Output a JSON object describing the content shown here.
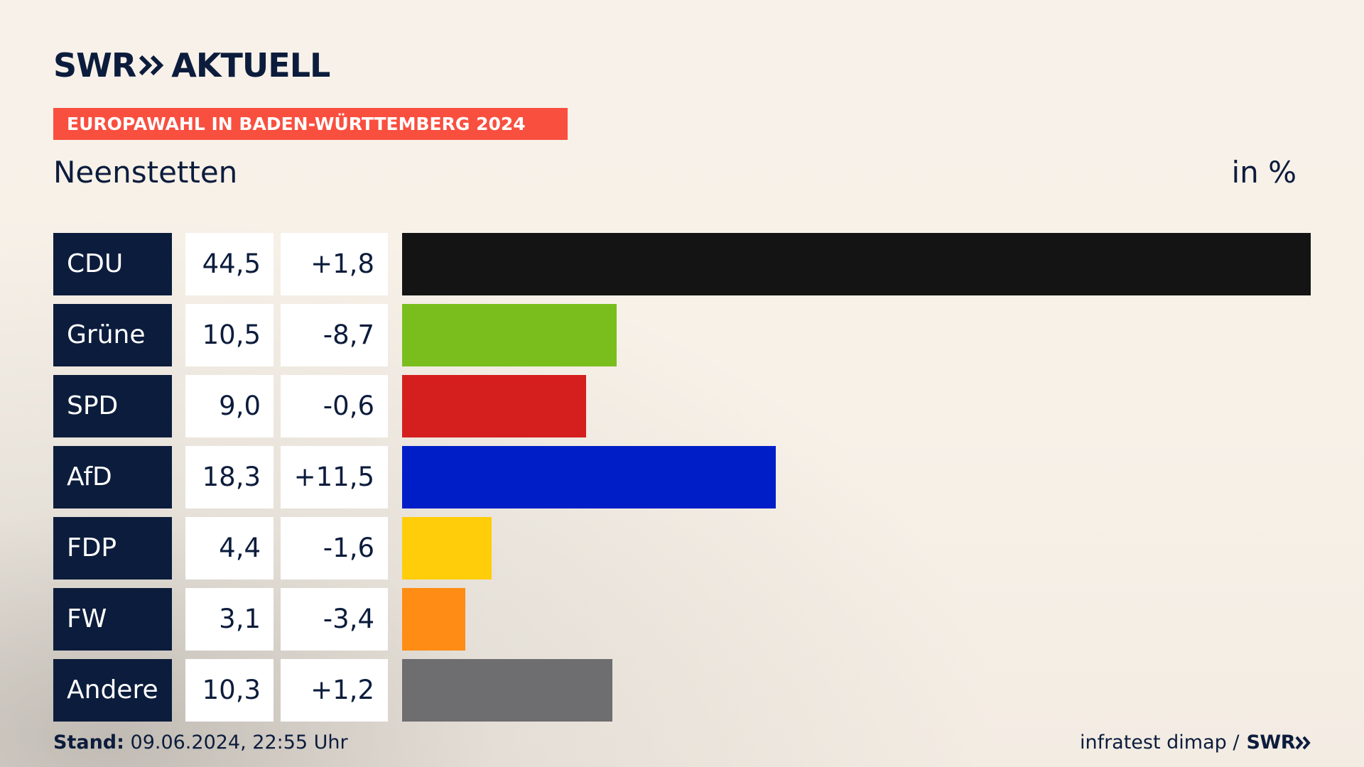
{
  "header": {
    "logo_main": "SWR",
    "logo_suffix": "AKTUELL",
    "tag": "EUROPAWAHL IN BADEN-WÜRTTEMBERG 2024",
    "place": "Neenstetten",
    "unit": "in %"
  },
  "colors": {
    "navy": "#0c1c3c",
    "tag_red": "#f94f3f"
  },
  "chart_data": {
    "type": "bar",
    "title": "Neenstetten",
    "unit": "in %",
    "xlim": [
      0,
      44.5
    ],
    "rows": [
      {
        "party": "CDU",
        "value": 44.5,
        "value_label": "44,5",
        "diff_label": "+1,8",
        "diff": 1.8,
        "color": "#141414"
      },
      {
        "party": "Grüne",
        "value": 10.5,
        "value_label": "10,5",
        "diff_label": "-8,7",
        "diff": -8.7,
        "color": "#7abe1e"
      },
      {
        "party": "SPD",
        "value": 9.0,
        "value_label": "9,0",
        "diff_label": "-0,6",
        "diff": -0.6,
        "color": "#d51e1e"
      },
      {
        "party": "AfD",
        "value": 18.3,
        "value_label": "18,3",
        "diff_label": "+11,5",
        "diff": 11.5,
        "color": "#001ec8"
      },
      {
        "party": "FDP",
        "value": 4.4,
        "value_label": "4,4",
        "diff_label": "-1,6",
        "diff": -1.6,
        "color": "#ffcd0a"
      },
      {
        "party": "FW",
        "value": 3.1,
        "value_label": "3,1",
        "diff_label": "-3,4",
        "diff": -3.4,
        "color": "#ff8c14"
      },
      {
        "party": "Andere",
        "value": 10.3,
        "value_label": "10,3",
        "diff_label": "+1,2",
        "diff": 1.2,
        "color": "#6e6e70"
      }
    ]
  },
  "footer": {
    "stand_label": "Stand:",
    "stand_value": "09.06.2024, 22:55 Uhr",
    "source": "infratest dimap /",
    "source_logo": "SWR"
  }
}
